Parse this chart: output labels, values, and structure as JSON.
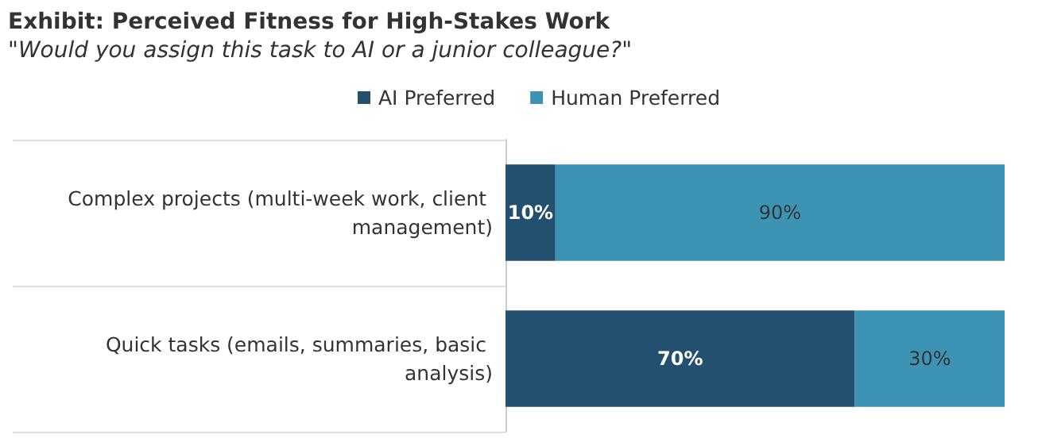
{
  "chart_data": {
    "type": "bar",
    "orientation": "horizontal",
    "stacked": true,
    "title": "Exhibit: Perceived Fitness for High-Stakes Work",
    "subtitle": "\"Would you assign this task to AI or a junior colleague?\"",
    "categories": [
      "Complex projects (multi-week work, client management)",
      "Quick tasks (emails, summaries, basic analysis)"
    ],
    "series": [
      {
        "name": "AI Preferred",
        "color": "#24506f",
        "values": [
          10,
          70
        ],
        "value_labels": [
          "10%",
          "70%"
        ]
      },
      {
        "name": "Human Preferred",
        "color": "#3d93b3",
        "values": [
          90,
          30
        ],
        "value_labels": [
          "90%",
          "30%"
        ]
      }
    ],
    "legend": "top",
    "grid": false
  }
}
